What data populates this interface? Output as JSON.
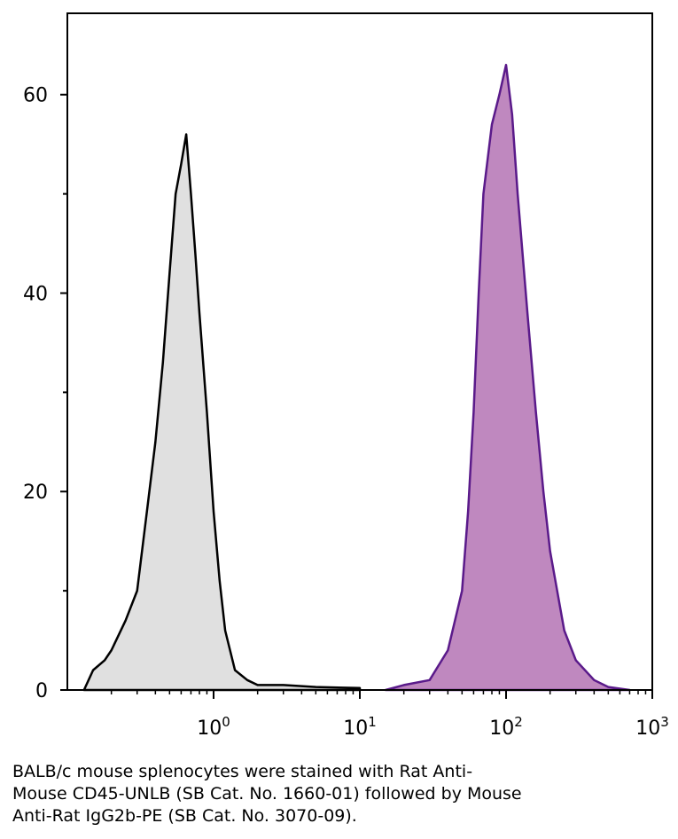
{
  "chart_data": {
    "type": "histogram-line",
    "xscale": "log",
    "xlim": [
      0.1,
      1000
    ],
    "ylim": [
      0,
      68.2
    ],
    "xticks": [
      {
        "value": 1,
        "label": "10",
        "exponent": "0"
      },
      {
        "value": 10,
        "label": "10",
        "exponent": "1"
      },
      {
        "value": 100,
        "label": "10",
        "exponent": "2"
      },
      {
        "value": 1000,
        "label": "10",
        "exponent": "3"
      }
    ],
    "yticks": [
      0,
      20,
      40,
      60
    ],
    "yticks_minor": [
      10,
      30,
      50
    ],
    "series": [
      {
        "color": "#000000",
        "fill": "#e0e0e0",
        "x": [
          0.13,
          0.15,
          0.18,
          0.2,
          0.25,
          0.3,
          0.35,
          0.4,
          0.45,
          0.5,
          0.55,
          0.6,
          0.65,
          0.7,
          0.75,
          0.8,
          0.9,
          1.0,
          1.1,
          1.2,
          1.4,
          1.7,
          2,
          3,
          5,
          10
        ],
        "values": [
          0,
          2,
          3,
          4,
          7,
          10,
          18,
          25,
          33,
          42,
          50,
          53,
          56,
          50,
          44,
          38,
          28,
          18,
          11,
          6,
          2,
          1,
          0.5,
          0.5,
          0.3,
          0.2
        ]
      },
      {
        "color": "#5a1a8a",
        "fill": "#bf88bf",
        "x": [
          15,
          20,
          30,
          40,
          50,
          55,
          60,
          65,
          70,
          80,
          90,
          100,
          110,
          120,
          140,
          160,
          180,
          200,
          250,
          300,
          400,
          500,
          700
        ],
        "values": [
          0,
          0.5,
          1,
          4,
          10,
          18,
          28,
          40,
          50,
          57,
          60,
          63,
          58,
          50,
          38,
          28,
          20,
          14,
          6,
          3,
          1,
          0.3,
          0
        ]
      }
    ]
  },
  "caption": [
    "BALB/c mouse splenocytes were stained with Rat Anti-",
    "Mouse CD45-UNLB (SB Cat. No. 1660-01) followed by Mouse",
    "Anti-Rat IgG2b-PE (SB Cat. No. 3070-09)."
  ]
}
